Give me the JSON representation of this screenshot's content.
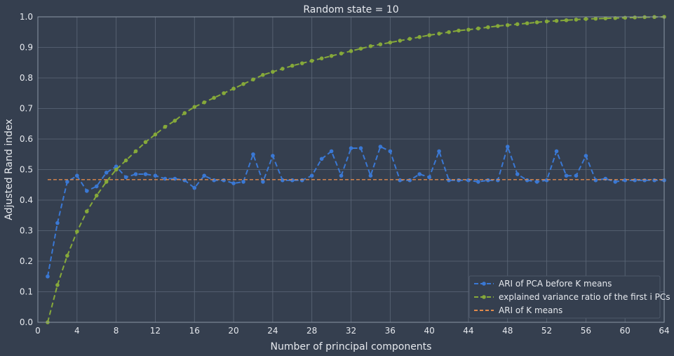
{
  "chart_data": {
    "type": "line",
    "title": "Random state = 10",
    "xlabel": "Number of principal components",
    "ylabel": "Adjusted Rand index",
    "xlim": [
      0,
      64
    ],
    "ylim": [
      0.0,
      1.0
    ],
    "xticks": [
      0,
      4,
      8,
      12,
      16,
      20,
      24,
      28,
      32,
      36,
      40,
      44,
      48,
      52,
      56,
      60,
      64
    ],
    "yticks": [
      0.0,
      0.1,
      0.2,
      0.3,
      0.4,
      0.5,
      0.6,
      0.7,
      0.8,
      0.9,
      1.0
    ],
    "grid": true,
    "legend_position": "lower-right",
    "x": [
      1,
      2,
      3,
      4,
      5,
      6,
      7,
      8,
      9,
      10,
      11,
      12,
      13,
      14,
      15,
      16,
      17,
      18,
      19,
      20,
      21,
      22,
      23,
      24,
      25,
      26,
      27,
      28,
      29,
      30,
      31,
      32,
      33,
      34,
      35,
      36,
      37,
      38,
      39,
      40,
      41,
      42,
      43,
      44,
      45,
      46,
      47,
      48,
      49,
      50,
      51,
      52,
      53,
      54,
      55,
      56,
      57,
      58,
      59,
      60,
      61,
      62,
      63,
      64
    ],
    "series": [
      {
        "name": "ARI of PCA before K means",
        "color": "#3a78d4",
        "style": "dashed-marker",
        "values": [
          0.15,
          0.325,
          0.46,
          0.48,
          0.43,
          0.445,
          0.49,
          0.51,
          0.475,
          0.485,
          0.485,
          0.48,
          0.47,
          0.47,
          0.465,
          0.44,
          0.48,
          0.465,
          0.465,
          0.455,
          0.46,
          0.55,
          0.46,
          0.545,
          0.465,
          0.465,
          0.465,
          0.48,
          0.535,
          0.56,
          0.48,
          0.57,
          0.57,
          0.48,
          0.575,
          0.56,
          0.465,
          0.465,
          0.485,
          0.475,
          0.56,
          0.465,
          0.465,
          0.465,
          0.46,
          0.465,
          0.465,
          0.575,
          0.485,
          0.465,
          0.46,
          0.465,
          0.56,
          0.48,
          0.48,
          0.545,
          0.465,
          0.47,
          0.46,
          0.465,
          0.465,
          0.465,
          0.465,
          0.465
        ]
      },
      {
        "name": "explained variance ratio of the first i PCs",
        "color": "#86a93a",
        "style": "dashed-marker",
        "values": [
          0.0,
          0.122,
          0.218,
          0.297,
          0.363,
          0.415,
          0.46,
          0.5,
          0.53,
          0.56,
          0.59,
          0.615,
          0.64,
          0.66,
          0.685,
          0.705,
          0.72,
          0.735,
          0.75,
          0.765,
          0.78,
          0.795,
          0.81,
          0.82,
          0.83,
          0.84,
          0.848,
          0.856,
          0.864,
          0.872,
          0.88,
          0.888,
          0.896,
          0.904,
          0.91,
          0.916,
          0.922,
          0.928,
          0.934,
          0.94,
          0.945,
          0.95,
          0.955,
          0.958,
          0.962,
          0.966,
          0.97,
          0.973,
          0.976,
          0.979,
          0.982,
          0.985,
          0.987,
          0.989,
          0.991,
          0.993,
          0.994,
          0.995,
          0.996,
          0.997,
          0.998,
          0.999,
          0.9995,
          1.0
        ]
      },
      {
        "name": "ARI of K means",
        "color": "#e08a4c",
        "style": "dashed",
        "values": [
          0.467,
          0.467
        ],
        "x": [
          1,
          64
        ]
      }
    ]
  }
}
